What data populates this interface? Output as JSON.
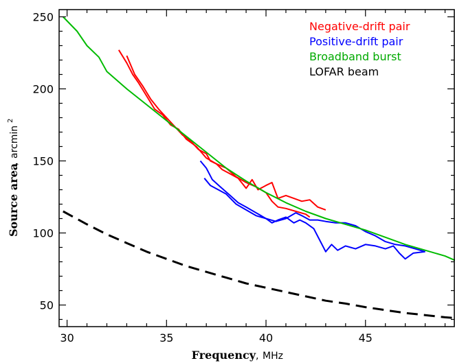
{
  "chart_data": {
    "type": "line",
    "xlabel": "Frequency",
    "xunit": "MHz",
    "ylabel": "Source area",
    "yunit": "arcmin",
    "yunit_sup": "2",
    "xlim": [
      29.6,
      49.5
    ],
    "ylim": [
      35,
      255
    ],
    "x_ticks": [
      30,
      35,
      40,
      45
    ],
    "y_ticks": [
      50,
      100,
      150,
      200,
      250
    ],
    "grid": false,
    "legend_position": "top-right",
    "series": [
      {
        "name": "Negative-drift pair",
        "color": "#ff0000",
        "style": "solid",
        "lines": [
          [
            [
              32.6,
              227
            ],
            [
              33.0,
              218
            ],
            [
              33.3,
              210
            ],
            [
              33.6,
              204
            ],
            [
              34.0,
              195
            ],
            [
              34.4,
              186
            ],
            [
              34.8,
              182
            ],
            [
              35.2,
              175
            ],
            [
              35.6,
              172
            ],
            [
              36.0,
              165
            ],
            [
              36.5,
              160
            ],
            [
              37.0,
              152
            ],
            [
              37.5,
              148
            ],
            [
              38.0,
              145
            ],
            [
              38.5,
              139
            ],
            [
              39.0,
              135
            ],
            [
              39.5,
              132
            ],
            [
              40.0,
              128
            ],
            [
              40.3,
              122
            ],
            [
              40.6,
              118
            ],
            [
              41.0,
              117
            ],
            [
              41.5,
              115
            ],
            [
              42.0,
              113
            ],
            [
              42.2,
              111
            ]
          ],
          [
            [
              33.0,
              223
            ],
            [
              33.4,
              210
            ],
            [
              33.8,
              202
            ],
            [
              34.2,
              193
            ],
            [
              34.6,
              186
            ],
            [
              35.0,
              180
            ],
            [
              35.4,
              174
            ],
            [
              35.8,
              168
            ],
            [
              36.2,
              164
            ],
            [
              36.6,
              158
            ],
            [
              37.0,
              155
            ],
            [
              37.2,
              150
            ],
            [
              37.5,
              148
            ],
            [
              37.8,
              144
            ],
            [
              38.2,
              141
            ],
            [
              38.6,
              138
            ],
            [
              39.0,
              131
            ],
            [
              39.3,
              137
            ],
            [
              39.6,
              130
            ],
            [
              40.0,
              133
            ],
            [
              40.3,
              135
            ],
            [
              40.6,
              124
            ],
            [
              41.0,
              126
            ],
            [
              41.4,
              124
            ],
            [
              41.8,
              122
            ],
            [
              42.2,
              123
            ],
            [
              42.6,
              118
            ],
            [
              43.0,
              116
            ]
          ]
        ]
      },
      {
        "name": "Positive-drift pair",
        "color": "#0000ff",
        "style": "solid",
        "lines": [
          [
            [
              36.7,
              150
            ],
            [
              37.0,
              145
            ],
            [
              37.3,
              137
            ],
            [
              37.7,
              132
            ],
            [
              38.2,
              126
            ],
            [
              38.6,
              121
            ],
            [
              39.0,
              118
            ],
            [
              39.5,
              114
            ],
            [
              40.0,
              110
            ],
            [
              40.5,
              108
            ],
            [
              41.0,
              110
            ],
            [
              41.5,
              114
            ],
            [
              41.8,
              112
            ],
            [
              42.2,
              109
            ],
            [
              42.6,
              109
            ],
            [
              43.0,
              108
            ],
            [
              43.5,
              107
            ],
            [
              44.0,
              107
            ],
            [
              44.5,
              105
            ],
            [
              45.0,
              101
            ],
            [
              45.5,
              98
            ],
            [
              46.0,
              94
            ],
            [
              46.5,
              92
            ],
            [
              47.0,
              91
            ],
            [
              47.5,
              89
            ],
            [
              48.0,
              87
            ]
          ],
          [
            [
              36.9,
              138
            ],
            [
              37.2,
              133
            ],
            [
              37.6,
              130
            ],
            [
              38.0,
              127
            ],
            [
              38.5,
              120
            ],
            [
              39.0,
              116
            ],
            [
              39.5,
              112
            ],
            [
              40.0,
              110
            ],
            [
              40.3,
              107
            ],
            [
              40.6,
              109
            ],
            [
              41.0,
              111
            ],
            [
              41.4,
              107
            ],
            [
              41.7,
              109
            ],
            [
              42.0,
              107
            ],
            [
              42.4,
              103
            ],
            [
              42.7,
              95
            ],
            [
              43.0,
              87
            ],
            [
              43.3,
              92
            ],
            [
              43.6,
              88
            ],
            [
              44.0,
              91
            ],
            [
              44.5,
              89
            ],
            [
              45.0,
              92
            ],
            [
              45.5,
              91
            ],
            [
              46.0,
              89
            ],
            [
              46.4,
              91
            ],
            [
              46.7,
              86
            ],
            [
              47.0,
              82
            ],
            [
              47.4,
              86
            ],
            [
              48.0,
              87
            ]
          ]
        ]
      },
      {
        "name": "Broadband burst",
        "color": "#00bb00",
        "style": "solid",
        "lines": [
          [
            [
              29.8,
              250
            ],
            [
              30.5,
              240
            ],
            [
              31.0,
              230
            ],
            [
              31.6,
              222
            ],
            [
              32.0,
              212
            ],
            [
              33.0,
              200
            ],
            [
              34.0,
              189
            ],
            [
              35.0,
              178
            ],
            [
              36.0,
              167
            ],
            [
              37.0,
              156
            ],
            [
              38.0,
              145
            ],
            [
              39.0,
              136
            ],
            [
              40.0,
              128
            ],
            [
              41.0,
              121
            ],
            [
              42.0,
              115
            ],
            [
              43.0,
              110
            ],
            [
              44.0,
              106
            ],
            [
              45.0,
              102
            ],
            [
              46.0,
              97
            ],
            [
              47.0,
              92
            ],
            [
              48.0,
              88
            ],
            [
              49.0,
              84
            ],
            [
              49.5,
              81
            ]
          ]
        ]
      },
      {
        "name": "LOFAR beam",
        "color": "#000000",
        "style": "dashed",
        "lines": [
          [
            [
              29.8,
              115
            ],
            [
              31.0,
              106
            ],
            [
              32.0,
              99
            ],
            [
              33.0,
              93
            ],
            [
              34.0,
              87
            ],
            [
              35.0,
              82
            ],
            [
              36.0,
              77
            ],
            [
              37.0,
              73
            ],
            [
              38.0,
              69
            ],
            [
              39.0,
              65
            ],
            [
              40.0,
              62
            ],
            [
              41.0,
              59
            ],
            [
              42.0,
              56
            ],
            [
              43.0,
              53
            ],
            [
              44.0,
              51
            ],
            [
              45.0,
              48.5
            ],
            [
              46.0,
              46.5
            ],
            [
              47.0,
              44.5
            ],
            [
              48.0,
              43
            ],
            [
              49.0,
              41.5
            ],
            [
              49.5,
              41
            ]
          ]
        ]
      }
    ]
  }
}
